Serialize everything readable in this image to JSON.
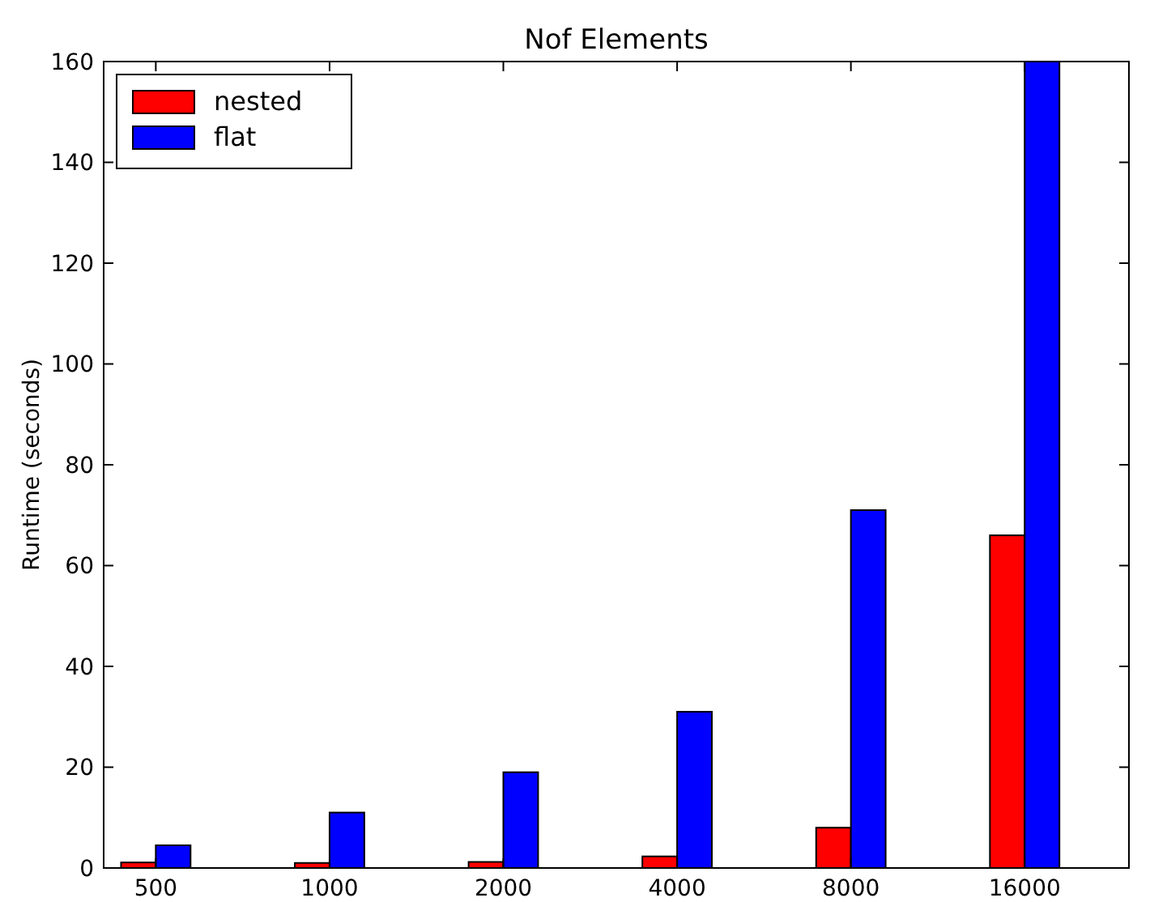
{
  "chart_data": {
    "type": "bar",
    "title": "Nof Elements",
    "ylabel": "Runtime  (seconds)",
    "categories": [
      "500",
      "1000",
      "2000",
      "4000",
      "8000",
      "16000"
    ],
    "series": [
      {
        "name": "nested",
        "color": "#ff0000",
        "values": [
          1.1,
          1,
          1.2,
          2.3,
          8,
          66
        ]
      },
      {
        "name": "flat",
        "color": "#0000ff",
        "values": [
          4.5,
          11,
          19,
          31,
          71,
          160
        ]
      }
    ],
    "ylim": [
      0,
      160
    ],
    "yticks": [
      0,
      20,
      40,
      60,
      80,
      100,
      120,
      140,
      160
    ],
    "legend": "top left",
    "grid": false
  }
}
